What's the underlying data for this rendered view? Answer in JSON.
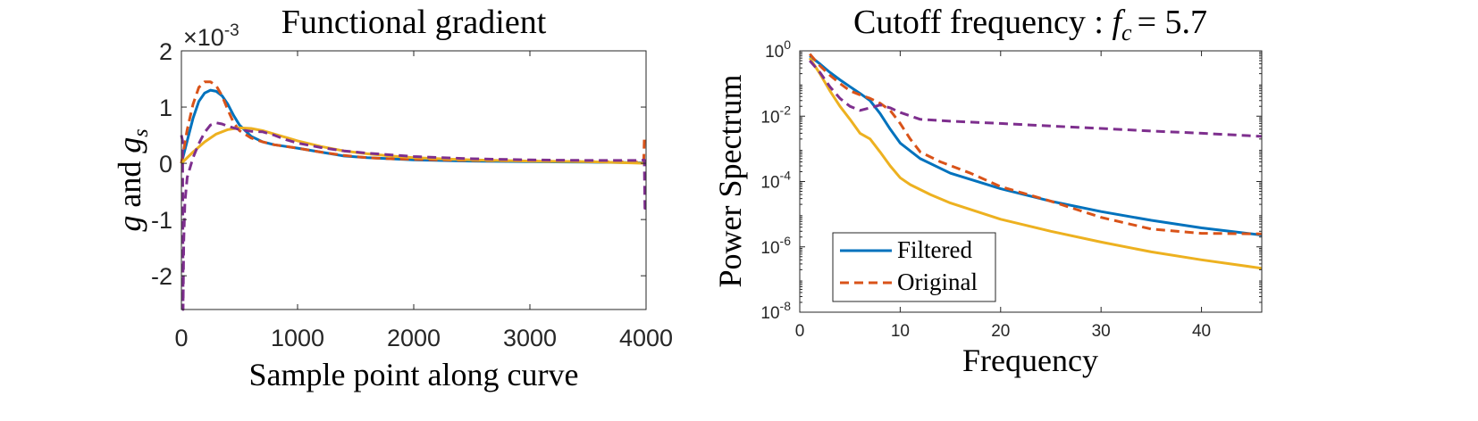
{
  "chart_data": [
    {
      "type": "line",
      "title": "Functional gradient",
      "xlabel": "Sample point along curve",
      "ylabel_main": "g",
      "ylabel_connector": "and",
      "ylabel_sub": "s",
      "multiplier_prefix": "×10",
      "multiplier_exp": "-3",
      "xlim": [
        0,
        4000
      ],
      "ylim": [
        -2.6,
        2.0
      ],
      "xticks": [
        0,
        1000,
        2000,
        3000,
        4000
      ],
      "xtick_labels": [
        "0",
        "1000",
        "2000",
        "3000",
        "4000"
      ],
      "yticks": [
        -2,
        -1,
        0,
        1,
        2
      ],
      "ytick_labels": [
        "-2",
        "-1",
        "0",
        "1",
        "2"
      ],
      "grid": false,
      "series": [
        {
          "color": "#0072BD",
          "style": "solid",
          "x": [
            0,
            50,
            100,
            150,
            200,
            250,
            300,
            350,
            400,
            450,
            500,
            600,
            700,
            800,
            900,
            1000,
            1200,
            1400,
            1600,
            1800,
            2000,
            2500,
            3000,
            3500,
            3950,
            4000
          ],
          "y": [
            0.0,
            0.4,
            0.8,
            1.1,
            1.25,
            1.3,
            1.28,
            1.2,
            1.05,
            0.85,
            0.68,
            0.48,
            0.38,
            0.33,
            0.3,
            0.27,
            0.2,
            0.13,
            0.1,
            0.08,
            0.06,
            0.04,
            0.03,
            0.02,
            0.01,
            0.0
          ]
        },
        {
          "color": "#D95319",
          "style": "dashed",
          "x": [
            0,
            50,
            100,
            150,
            200,
            250,
            300,
            350,
            400,
            450,
            500,
            600,
            700,
            800,
            900,
            1000,
            1200,
            1400,
            1600,
            1800,
            2000,
            2500,
            3000,
            3500,
            3980,
            3985,
            4000
          ],
          "y": [
            0.0,
            0.6,
            1.05,
            1.35,
            1.45,
            1.45,
            1.38,
            1.2,
            0.95,
            0.72,
            0.58,
            0.45,
            0.38,
            0.33,
            0.3,
            0.27,
            0.2,
            0.14,
            0.1,
            0.08,
            0.07,
            0.05,
            0.04,
            0.03,
            0.02,
            0.42,
            0.4
          ]
        },
        {
          "color": "#EDB120",
          "style": "solid",
          "x": [
            0,
            100,
            200,
            300,
            400,
            500,
            600,
            700,
            800,
            900,
            1000,
            1200,
            1400,
            1600,
            1800,
            2000,
            2500,
            3000,
            3500,
            4000
          ],
          "y": [
            0.0,
            0.2,
            0.38,
            0.52,
            0.6,
            0.63,
            0.62,
            0.58,
            0.52,
            0.46,
            0.4,
            0.3,
            0.22,
            0.17,
            0.13,
            0.1,
            0.06,
            0.04,
            0.03,
            0.0
          ]
        },
        {
          "color": "#7E2F8E",
          "style": "dashed",
          "x": [
            0,
            10,
            15,
            20,
            30,
            50,
            100,
            150,
            200,
            250,
            300,
            350,
            400,
            500,
            600,
            700,
            800,
            900,
            1000,
            1200,
            1400,
            1600,
            1800,
            2000,
            2500,
            3000,
            3500,
            3950,
            3985,
            3990,
            4000
          ],
          "y": [
            0.5,
            0.4,
            -2.6,
            -1.4,
            -0.7,
            -0.25,
            0.1,
            0.35,
            0.55,
            0.68,
            0.72,
            0.7,
            0.66,
            0.6,
            0.57,
            0.56,
            0.5,
            0.42,
            0.36,
            0.28,
            0.22,
            0.18,
            0.15,
            0.12,
            0.08,
            0.06,
            0.05,
            0.05,
            0.06,
            -0.8,
            -0.8
          ]
        }
      ]
    },
    {
      "type": "line",
      "title_prefix": "Cutoff frequency :",
      "title_var": "f",
      "title_sub": "c",
      "title_value": "= 5.7",
      "xlabel": "Frequency",
      "ylabel": "Power Spectrum",
      "xlim": [
        0,
        46
      ],
      "ylim": [
        1e-08,
        1
      ],
      "yscale": "log",
      "xticks": [
        0,
        10,
        20,
        30,
        40
      ],
      "xtick_labels": [
        "0",
        "10",
        "20",
        "30",
        "40"
      ],
      "yticks": [
        1e-08,
        1e-06,
        0.0001,
        0.01,
        1
      ],
      "ytick_base": "10",
      "ytick_exps": [
        "-8",
        "-6",
        "-4",
        "-2",
        "0"
      ],
      "grid": false,
      "legend": {
        "position": "bottom-left",
        "entries": [
          {
            "label": "Filtered",
            "color": "#0072BD",
            "style": "solid"
          },
          {
            "label": "Original",
            "color": "#D95319",
            "style": "dashed"
          }
        ]
      },
      "series": [
        {
          "name": "Filtered",
          "color": "#0072BD",
          "style": "solid",
          "x": [
            1,
            2,
            3,
            4,
            5,
            6,
            7,
            8,
            9,
            10,
            12,
            15,
            20,
            25,
            30,
            35,
            40,
            46
          ],
          "y": [
            0.7,
            0.4,
            0.22,
            0.13,
            0.08,
            0.05,
            0.03,
            0.012,
            0.004,
            0.0015,
            0.0005,
            0.00018,
            6e-05,
            2.5e-05,
            1.2e-05,
            6.5e-06,
            3.8e-06,
            2.3e-06
          ]
        },
        {
          "name": "Original",
          "color": "#D95319",
          "style": "dashed",
          "x": [
            1,
            2,
            3,
            4,
            5,
            6,
            7,
            8,
            9,
            10,
            11,
            12,
            14,
            17,
            20,
            25,
            30,
            35,
            40,
            46
          ],
          "y": [
            0.8,
            0.35,
            0.18,
            0.1,
            0.06,
            0.045,
            0.035,
            0.025,
            0.015,
            0.006,
            0.002,
            0.0008,
            0.0004,
            0.00018,
            7e-05,
            2.5e-05,
            8e-06,
            3.5e-06,
            2.6e-06,
            2.5e-06
          ]
        },
        {
          "color": "#EDB120",
          "style": "solid",
          "x": [
            1,
            2,
            3,
            4,
            5,
            6,
            7,
            8,
            9,
            10,
            11,
            13,
            15,
            20,
            25,
            30,
            35,
            40,
            46
          ],
          "y": [
            0.6,
            0.2,
            0.06,
            0.02,
            0.008,
            0.003,
            0.002,
            0.0008,
            0.0003,
            0.00013,
            8e-05,
            4e-05,
            2.2e-05,
            7e-06,
            3e-06,
            1.4e-06,
            7e-07,
            4e-07,
            2.2e-07
          ]
        },
        {
          "color": "#7E2F8E",
          "style": "dashed",
          "x": [
            1,
            2,
            3,
            4,
            5,
            6,
            7,
            8,
            9,
            10,
            12,
            15,
            20,
            25,
            30,
            35,
            40,
            46
          ],
          "y": [
            0.5,
            0.22,
            0.08,
            0.035,
            0.02,
            0.015,
            0.018,
            0.022,
            0.018,
            0.013,
            0.008,
            0.007,
            0.006,
            0.005,
            0.0042,
            0.0035,
            0.003,
            0.0024
          ]
        }
      ]
    }
  ]
}
